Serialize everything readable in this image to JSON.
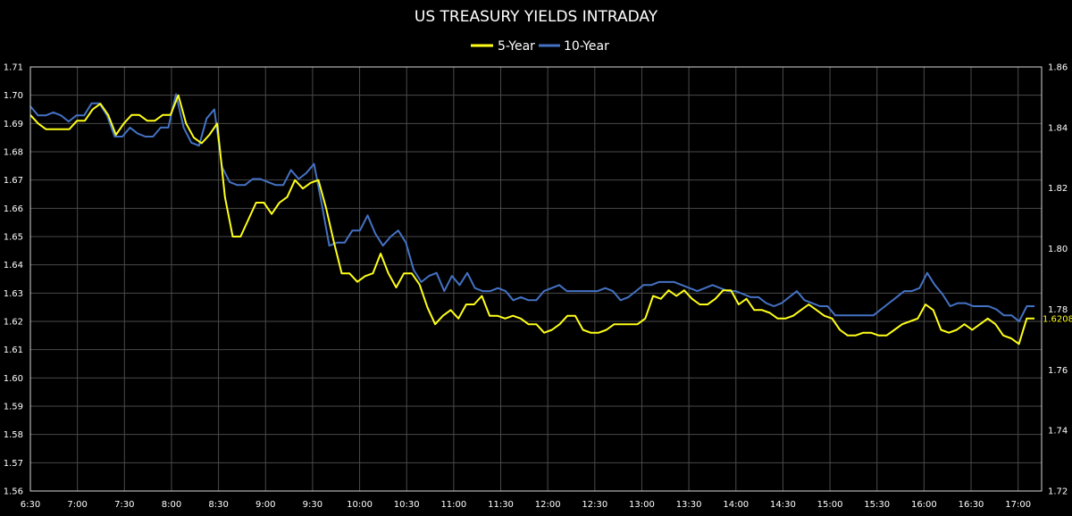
{
  "chart_data": {
    "type": "line",
    "title": "US TREASURY YIELDS INTRADAY",
    "legend_position": "top",
    "grid": true,
    "x_ticks": [
      "6:30",
      "7:00",
      "7:30",
      "8:00",
      "8:30",
      "9:00",
      "9:30",
      "10:00",
      "10:30",
      "11:00",
      "11:30",
      "12:00",
      "12:30",
      "13:00",
      "13:30",
      "14:00",
      "14:30",
      "15:00",
      "15:30",
      "16:00",
      "16:30",
      "17:00"
    ],
    "y_left": {
      "min": 1.56,
      "max": 1.71,
      "step": 0.01,
      "ticks": [
        "1.56",
        "1.57",
        "1.58",
        "1.59",
        "1.60",
        "1.61",
        "1.62",
        "1.63",
        "1.64",
        "1.65",
        "1.66",
        "1.67",
        "1.68",
        "1.69",
        "1.70",
        "1.71"
      ]
    },
    "y_right": {
      "min": 1.72,
      "max": 1.86,
      "step": 0.02,
      "ticks": [
        "1.72",
        "1.74",
        "1.76",
        "1.78",
        "1.80",
        "1.82",
        "1.84",
        "1.86"
      ]
    },
    "last_value_label": "1.6208",
    "series": [
      {
        "name": "5-Year",
        "axis": "left",
        "color": "#ffff1a",
        "values": [
          1.693,
          1.69,
          1.688,
          1.688,
          1.688,
          1.688,
          1.691,
          1.691,
          1.695,
          1.697,
          1.693,
          1.686,
          1.69,
          1.693,
          1.693,
          1.691,
          1.691,
          1.693,
          1.693,
          1.7,
          1.69,
          1.685,
          1.683,
          1.686,
          1.69,
          1.664,
          1.65,
          1.65,
          1.656,
          1.662,
          1.662,
          1.658,
          1.662,
          1.664,
          1.67,
          1.667,
          1.669,
          1.67,
          1.66,
          1.648,
          1.637,
          1.637,
          1.634,
          1.636,
          1.637,
          1.644,
          1.637,
          1.632,
          1.637,
          1.637,
          1.633,
          1.625,
          1.619,
          1.622,
          1.624,
          1.621,
          1.626,
          1.626,
          1.629,
          1.622,
          1.622,
          1.621,
          1.622,
          1.621,
          1.619,
          1.619,
          1.616,
          1.617,
          1.619,
          1.622,
          1.622,
          1.617,
          1.616,
          1.616,
          1.617,
          1.619,
          1.619,
          1.619,
          1.619,
          1.621,
          1.629,
          1.628,
          1.631,
          1.629,
          1.631,
          1.628,
          1.626,
          1.626,
          1.628,
          1.631,
          1.631,
          1.626,
          1.628,
          1.624,
          1.624,
          1.623,
          1.621,
          1.621,
          1.622,
          1.624,
          1.626,
          1.624,
          1.622,
          1.621,
          1.617,
          1.615,
          1.615,
          1.616,
          1.616,
          1.615,
          1.615,
          1.617,
          1.619,
          1.62,
          1.621,
          1.626,
          1.624,
          1.617,
          1.616,
          1.617,
          1.619,
          1.617,
          1.619,
          1.621,
          1.619,
          1.615,
          1.614,
          1.612,
          1.621,
          1.621
        ]
      },
      {
        "name": "10-Year",
        "axis": "right",
        "color": "#4472c4",
        "values": [
          1.847,
          1.844,
          1.844,
          1.845,
          1.844,
          1.842,
          1.844,
          1.844,
          1.848,
          1.848,
          1.844,
          1.837,
          1.837,
          1.84,
          1.838,
          1.837,
          1.837,
          1.84,
          1.84,
          1.851,
          1.84,
          1.835,
          1.834,
          1.843,
          1.846,
          1.827,
          1.822,
          1.821,
          1.821,
          1.823,
          1.823,
          1.822,
          1.821,
          1.821,
          1.826,
          1.823,
          1.825,
          1.828,
          1.815,
          1.801,
          1.802,
          1.802,
          1.806,
          1.806,
          1.811,
          1.805,
          1.801,
          1.804,
          1.806,
          1.802,
          1.793,
          1.789,
          1.791,
          1.792,
          1.786,
          1.791,
          1.788,
          1.792,
          1.787,
          1.786,
          1.786,
          1.787,
          1.786,
          1.783,
          1.784,
          1.783,
          1.783,
          1.786,
          1.787,
          1.788,
          1.786,
          1.786,
          1.786,
          1.786,
          1.786,
          1.787,
          1.786,
          1.783,
          1.784,
          1.786,
          1.788,
          1.788,
          1.789,
          1.789,
          1.789,
          1.788,
          1.787,
          1.786,
          1.787,
          1.788,
          1.787,
          1.786,
          1.786,
          1.785,
          1.784,
          1.784,
          1.782,
          1.781,
          1.782,
          1.784,
          1.786,
          1.783,
          1.782,
          1.781,
          1.781,
          1.778,
          1.778,
          1.778,
          1.778,
          1.778,
          1.778,
          1.78,
          1.782,
          1.784,
          1.786,
          1.786,
          1.787,
          1.792,
          1.788,
          1.785,
          1.781,
          1.782,
          1.782,
          1.781,
          1.781,
          1.781,
          1.78,
          1.778,
          1.778,
          1.776,
          1.781,
          1.781
        ]
      }
    ]
  }
}
